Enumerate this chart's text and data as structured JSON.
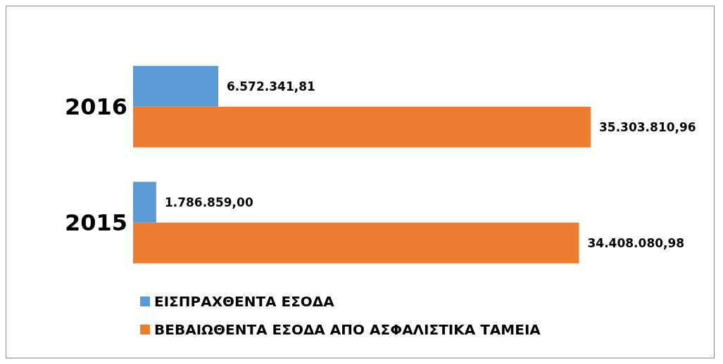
{
  "chart_data": {
    "type": "bar",
    "orientation": "horizontal",
    "categories": [
      "2016",
      "2015"
    ],
    "series": [
      {
        "name": "ΕΙΣΠΡΑΧΘΕΝΤΑ ΕΣΟΔΑ",
        "color": "#5b9bd5",
        "values": [
          6572341.81,
          1786859.0
        ],
        "value_labels": [
          "6.572.341,81",
          "1.786.859,00"
        ]
      },
      {
        "name": "ΒΕΒΑΙΩΘΕΝΤΑ ΕΣΟΔΑ ΑΠΟ ΑΣΦΑΛΙΣΤΙΚΑ ΤΑΜΕΙΑ",
        "color": "#ed7d31",
        "values": [
          35303810.96,
          34408080.98
        ],
        "value_labels": [
          "35.303.810,96",
          "34.408.080,98"
        ]
      }
    ],
    "legend": "bottom"
  }
}
